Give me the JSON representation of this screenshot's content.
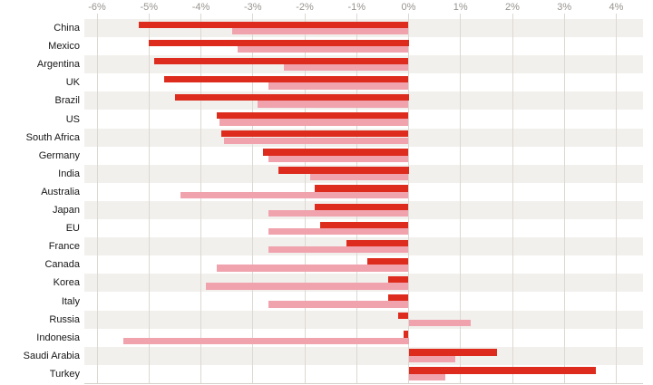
{
  "chart_data": {
    "type": "bar",
    "orientation": "horizontal",
    "title": "",
    "xlabel": "",
    "ylabel": "",
    "unit": "%",
    "grid": "vertical",
    "legend": "none",
    "xlim": [
      -6.24,
      4.52
    ],
    "x_ticks": [
      "-6%",
      "-5%",
      "-4%",
      "-3%",
      "-2%",
      "-1%",
      "0%",
      "1%",
      "2%",
      "3%",
      "4%"
    ],
    "x_tick_values": [
      -6,
      -5,
      -4,
      -3,
      -2,
      -1,
      0,
      1,
      2,
      3,
      4
    ],
    "categories": [
      "China",
      "Mexico",
      "Argentina",
      "UK",
      "Brazil",
      "US",
      "South Africa",
      "Germany",
      "India",
      "Australia",
      "Japan",
      "EU",
      "France",
      "Canada",
      "Korea",
      "Italy",
      "Russia",
      "Indonesia",
      "Saudi Arabia",
      "Turkey"
    ],
    "series": [
      {
        "name": "dark-red-series",
        "color": "#dd2c1e",
        "values": [
          -5.2,
          -5.0,
          -4.9,
          -4.7,
          -4.5,
          -3.7,
          -3.6,
          -2.8,
          -2.5,
          -1.8,
          -1.8,
          -1.7,
          -1.2,
          -0.8,
          -0.4,
          -0.4,
          -0.2,
          -0.1,
          1.7,
          3.6
        ]
      },
      {
        "name": "pink-series",
        "color": "#f0a2ad",
        "values": [
          -3.4,
          -3.3,
          -2.4,
          -2.7,
          -2.9,
          -3.65,
          -3.55,
          -2.7,
          -1.9,
          -4.4,
          -2.7,
          -2.7,
          -2.7,
          -3.7,
          -3.9,
          -2.7,
          1.2,
          -5.5,
          0.9,
          0.7
        ]
      }
    ]
  },
  "colors": {
    "bar_dark": "#dd2c1e",
    "bar_pink": "#f0a2ad",
    "row_band": "#f2f0ed",
    "gridline": "#dcd8d3",
    "axis_bottom_line": "#d3cfca",
    "axis_label": "#98948f",
    "category_label": "#161616",
    "background": "#ffffff"
  }
}
